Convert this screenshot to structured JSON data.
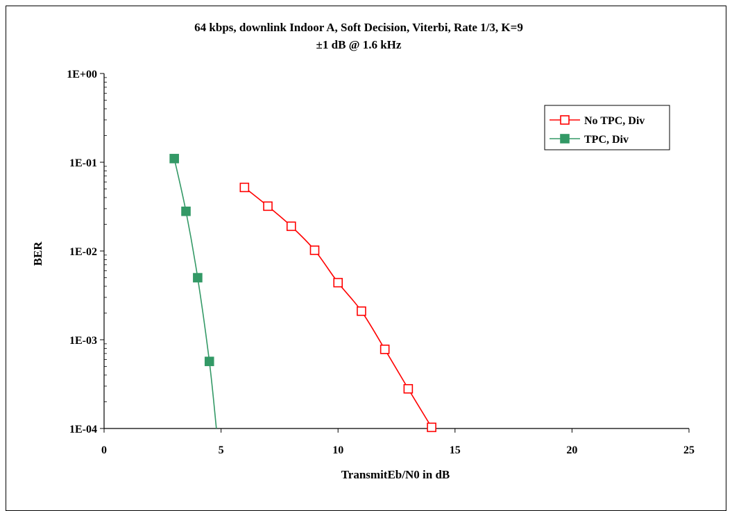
{
  "chart_data": {
    "type": "line",
    "title": "64 kbps, downlink Indoor A, Soft Decision, Viterbi, Rate 1/3, K=9",
    "subtitle": "±1 dB @ 1.6 kHz",
    "xlabel": "TransmitEb/N0 in dB",
    "ylabel": "BER",
    "xlim": [
      0,
      25
    ],
    "ylim": [
      0.0001,
      1
    ],
    "yscale": "log",
    "x_ticks": [
      "0",
      "5",
      "10",
      "15",
      "20",
      "25"
    ],
    "y_ticks": [
      "1E+00",
      "1E-01",
      "1E-02",
      "1E-03",
      "1E-04"
    ],
    "grid": false,
    "legend_position": "top-right",
    "series": [
      {
        "name": "No TPC, Div",
        "color": "#ff0000",
        "marker": "open-square",
        "x": [
          6,
          7,
          8,
          9,
          10,
          11,
          12,
          13,
          14
        ],
        "y": [
          0.052,
          0.032,
          0.019,
          0.0102,
          0.0044,
          0.0021,
          0.00078,
          0.00028,
          0.000103
        ]
      },
      {
        "name": "TPC, Div",
        "color": "#339966",
        "marker": "filled-square",
        "x": [
          3,
          3.5,
          4,
          4.5
        ],
        "y": [
          0.11,
          0.028,
          0.005,
          0.00057
        ],
        "curve_end": {
          "x": 4.8,
          "y": 0.0001
        }
      }
    ]
  }
}
